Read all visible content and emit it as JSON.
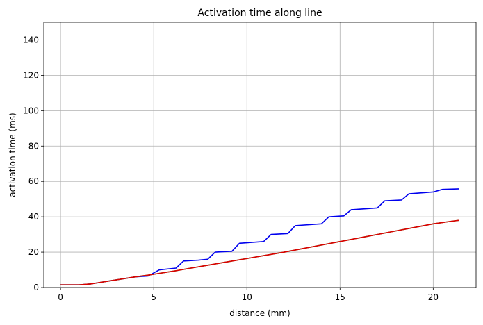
{
  "chart_data": {
    "type": "line",
    "title": "Activation time along line",
    "xlabel": "distance (mm)",
    "ylabel": "activation time (ms)",
    "xlim": [
      -0.9,
      22.3
    ],
    "ylim": [
      0,
      150
    ],
    "xticks": [
      0,
      5,
      10,
      15,
      20
    ],
    "yticks": [
      0,
      20,
      40,
      60,
      80,
      100,
      120,
      140
    ],
    "grid": true,
    "series": [
      {
        "color": "#0000ee",
        "x": [
          0,
          1.0,
          1.6,
          2.2,
          2.8,
          3.4,
          4.0,
          4.7,
          5.3,
          6.2,
          6.6,
          7.4,
          7.9,
          8.3,
          9.2,
          9.6,
          10.9,
          11.3,
          12.2,
          12.6,
          14.0,
          14.4,
          15.2,
          15.6,
          17.0,
          17.4,
          18.3,
          18.7,
          20.0,
          20.5,
          21.4
        ],
        "y": [
          1.5,
          1.5,
          2,
          3,
          4,
          5,
          6,
          6.5,
          10,
          11,
          15,
          15.5,
          16,
          20,
          20.5,
          25,
          26,
          30,
          30.5,
          35,
          36,
          40,
          40.5,
          44,
          45,
          49,
          49.5,
          53,
          54,
          55.5,
          55.8
        ]
      },
      {
        "color": "#228b22",
        "x": [
          0,
          1.0,
          1.6,
          2.2,
          2.8,
          3.4,
          4.0,
          4.7,
          5.3,
          6.2,
          7.0,
          8.0,
          9.0,
          10.0,
          11.0,
          12.0,
          13.0,
          14.0,
          15.0,
          16.0,
          17.0,
          18.0,
          19.0,
          20.0,
          21.0,
          21.4
        ],
        "y": [
          1.5,
          1.5,
          2,
          3,
          4,
          5,
          6,
          7,
          8,
          9.5,
          11,
          12.8,
          14.6,
          16.4,
          18.2,
          20,
          22,
          24,
          26,
          28,
          30,
          32,
          34,
          36,
          37.5,
          38
        ]
      },
      {
        "color": "#dd0000",
        "x": [
          0,
          1.0,
          1.6,
          2.2,
          2.8,
          3.4,
          4.0,
          4.7,
          5.3,
          6.2,
          7.0,
          8.0,
          9.0,
          10.0,
          11.0,
          12.0,
          13.0,
          14.0,
          15.0,
          16.0,
          17.0,
          18.0,
          19.0,
          20.0,
          21.0,
          21.4
        ],
        "y": [
          1.5,
          1.5,
          2,
          3,
          4,
          5,
          6,
          7,
          8,
          9.5,
          11,
          12.8,
          14.6,
          16.4,
          18.2,
          20,
          22,
          24,
          26,
          28,
          30,
          32,
          34,
          36,
          37.5,
          38
        ]
      }
    ]
  }
}
